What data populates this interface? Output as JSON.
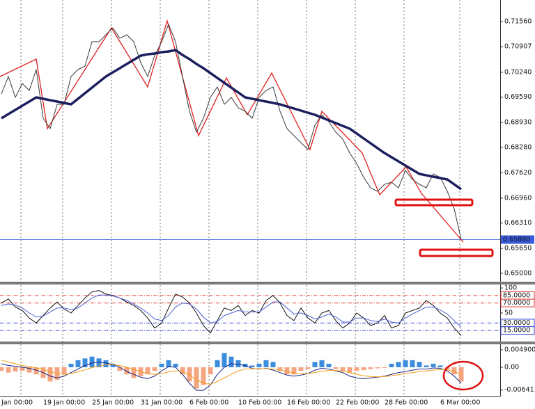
{
  "chart_data": [
    {
      "type": "line",
      "ylim": [
        0.64783,
        0.72122
      ],
      "yticks": [
        {
          "value": 0.7156,
          "label": "0.71560"
        },
        {
          "value": 0.70907,
          "label": "0.70907"
        },
        {
          "value": 0.7024,
          "label": "0.70240"
        },
        {
          "value": 0.6959,
          "label": "0.69590"
        },
        {
          "value": 0.6893,
          "label": "0.68930"
        },
        {
          "value": 0.6828,
          "label": "0.68280"
        },
        {
          "value": 0.6762,
          "label": "0.67620"
        },
        {
          "value": 0.6696,
          "label": "0.66960"
        },
        {
          "value": 0.6631,
          "label": "0.66310"
        },
        {
          "value": 0.6565,
          "label": "0.65650"
        },
        {
          "value": 0.65,
          "label": "0.65000"
        }
      ],
      "hline": {
        "value": 0.6588,
        "label": "0.65880",
        "color": "#3a5bd9"
      },
      "series": [
        {
          "color": "#3a3a3a",
          "values": [
            0.69675,
            0.70128,
            0.69585,
            0.69947,
            0.69766,
            0.7031,
            0.69041,
            0.6877,
            0.69404,
            0.69404,
            0.70128,
            0.7031,
            0.704,
            0.71035,
            0.71035,
            0.71216,
            0.71397,
            0.71125,
            0.71216,
            0.71035,
            0.70491,
            0.70128,
            0.70672,
            0.71035,
            0.71488,
            0.71035,
            0.70128,
            0.69223,
            0.68679,
            0.69041,
            0.69585,
            0.69857,
            0.69404,
            0.69585,
            0.69313,
            0.69223,
            0.69041,
            0.69585,
            0.69766,
            0.69857,
            0.69223,
            0.6877,
            0.68588,
            0.68407,
            0.68226,
            0.6886,
            0.69132,
            0.68951,
            0.68679,
            0.68498,
            0.68135,
            0.67864,
            0.67501,
            0.67229,
            0.67139,
            0.6732,
            0.67374,
            0.67229,
            0.67682,
            0.67447,
            0.6732,
            0.67229,
            0.67592,
            0.67501,
            0.67139,
            0.66686,
            0.6588
          ]
        },
        {
          "color": "#1c1f5e",
          "values": [
            0.69041,
            0.6915,
            0.69259,
            0.69367,
            0.69476,
            0.69585,
            0.69549,
            0.69512,
            0.69476,
            0.6944,
            0.69404,
            0.69549,
            0.69694,
            0.69839,
            0.69984,
            0.70128,
            0.70237,
            0.70346,
            0.70455,
            0.70563,
            0.70672,
            0.70708,
            0.70726,
            0.70763,
            0.70781,
            0.70817,
            0.7069,
            0.70582,
            0.70455,
            0.70346,
            0.70219,
            0.70092,
            0.69965,
            0.69839,
            0.69712,
            0.69585,
            0.69549,
            0.69512,
            0.69476,
            0.6944,
            0.69404,
            0.69349,
            0.69295,
            0.69241,
            0.69186,
            0.69132,
            0.69059,
            0.68987,
            0.68914,
            0.68842,
            0.6877,
            0.68643,
            0.68516,
            0.68389,
            0.68262,
            0.68135,
            0.68027,
            0.67918,
            0.67809,
            0.677,
            0.67592,
            0.67555,
            0.67519,
            0.67483,
            0.67447,
            0.6732,
            0.67193
          ]
        }
      ]
    },
    {
      "type": "line",
      "ylim": [
        -7,
        107
      ],
      "yticks": [
        100,
        50
      ],
      "levels": [
        {
          "value": 85,
          "label": "85.0000",
          "color": "#e03030"
        },
        {
          "value": 70,
          "label": "70.0000",
          "color": "#e03030"
        },
        {
          "value": 30,
          "label": "30.0000",
          "color": "#2a3fd0"
        },
        {
          "value": 15,
          "label": "15.0000",
          "color": "#2a3fd0"
        }
      ],
      "series": [
        {
          "color": "#111111",
          "values": [
            70,
            78,
            62,
            55,
            40,
            30,
            45,
            60,
            72,
            58,
            50,
            65,
            80,
            92,
            95,
            88,
            85,
            80,
            72,
            65,
            55,
            40,
            20,
            30,
            60,
            88,
            82,
            70,
            50,
            25,
            10,
            35,
            60,
            55,
            65,
            45,
            55,
            50,
            75,
            85,
            70,
            45,
            35,
            60,
            40,
            30,
            50,
            55,
            35,
            20,
            30,
            50,
            40,
            25,
            30,
            45,
            20,
            25,
            50,
            55,
            60,
            75,
            65,
            50,
            40,
            20,
            5
          ]
        },
        {
          "color": "#4b5fd6",
          "values": [
            65,
            68,
            66,
            60,
            50,
            42,
            44,
            52,
            60,
            60,
            57,
            60,
            70,
            80,
            86,
            86,
            84,
            80,
            75,
            68,
            60,
            50,
            38,
            35,
            45,
            62,
            70,
            68,
            58,
            42,
            30,
            33,
            45,
            50,
            55,
            52,
            52,
            52,
            62,
            72,
            72,
            60,
            48,
            50,
            45,
            38,
            42,
            48,
            42,
            32,
            32,
            40,
            40,
            35,
            33,
            38,
            32,
            30,
            40,
            48,
            55,
            62,
            62,
            56,
            48,
            35,
            22
          ]
        }
      ]
    },
    {
      "type": "combo",
      "ylim": [
        -0.00823,
        0.00647
      ],
      "yticks": [
        {
          "value": 0.0049007,
          "label": "0.0049007"
        },
        {
          "value": 0,
          "label": "0.00"
        },
        {
          "value": -0.006413,
          "label": "-0.006413"
        }
      ],
      "categories": [
        "Jan 00:00",
        null,
        null,
        null,
        null,
        null,
        "19 Jan 00:00",
        null,
        null,
        null,
        null,
        null,
        null,
        "25 Jan 00:00",
        null,
        null,
        null,
        null,
        null,
        null,
        "31 Jan 00:00",
        null,
        null,
        null,
        null,
        null,
        null,
        "6 Feb 00:00",
        null,
        null,
        null,
        null,
        null,
        null,
        "10 Feb 00:00",
        null,
        null,
        null,
        null,
        null,
        null,
        "16 Feb 00:00",
        null,
        null,
        null,
        null,
        null,
        null,
        "22 Feb 00:00",
        null,
        null,
        null,
        null,
        null,
        null,
        "28 Feb 00:00",
        null,
        null,
        null,
        null,
        null,
        null,
        null,
        "6 Mar 00:00",
        null,
        null,
        null
      ],
      "series": [
        {
          "type": "bar",
          "color": "#3c8dde",
          "negative_color": "#f4a582",
          "values": [
            -0.001,
            -0.0015,
            -0.0012,
            -0.001,
            -0.0015,
            -0.002,
            -0.003,
            -0.004,
            -0.0035,
            -0.002,
            0.001,
            0.002,
            0.0025,
            0.003,
            0.0025,
            0.002,
            0.001,
            -0.001,
            -0.002,
            -0.003,
            -0.0025,
            -0.002,
            -0.001,
            0.001,
            0.002,
            0.001,
            -0.002,
            -0.004,
            -0.006,
            -0.005,
            -0.002,
            0.002,
            0.004,
            0.003,
            0.002,
            0.001,
            0.0005,
            0.001,
            0.002,
            0.0015,
            -0.001,
            -0.002,
            -0.002,
            -0.001,
            -0.0005,
            0.0015,
            0.002,
            0.001,
            -0.0005,
            -0.001,
            -0.0015,
            -0.001,
            -0.0008,
            -0.0005,
            -0.0003,
            -0.0002,
            0.001,
            0.0015,
            0.002,
            0.002,
            0.0015,
            0.0005,
            0.001,
            0.0005,
            -0.0005,
            -0.002,
            -0.004
          ]
        },
        {
          "type": "line",
          "color": "#1a237e",
          "values": [
            0.001,
            0.0005,
            0.0003,
            0,
            -0.0003,
            -0.0008,
            -0.0015,
            -0.0025,
            -0.003,
            -0.0025,
            -0.0015,
            -0.0005,
            0.0005,
            0.0012,
            0.0015,
            0.0012,
            0.0008,
            0,
            -0.0012,
            -0.002,
            -0.0028,
            -0.0032,
            -0.0025,
            -0.001,
            0.0002,
            0,
            -0.002,
            -0.0045,
            -0.0065,
            -0.0065,
            -0.005,
            -0.002,
            0,
            0.001,
            0.0008,
            0.0005,
            -0.0003,
            -0.0005,
            -0.0003,
            -0.0008,
            -0.0015,
            -0.0022,
            -0.0025,
            -0.0022,
            -0.0018,
            -0.0008,
            -0.0003,
            -0.0005,
            -0.001,
            -0.0015,
            -0.0025,
            -0.003,
            -0.0032,
            -0.003,
            -0.0028,
            -0.0025,
            -0.002,
            -0.0015,
            -0.0012,
            -0.0008,
            -0.0005,
            -0.0005,
            -0.0002,
            -0.0003,
            -0.001,
            -0.0025,
            -0.0045
          ]
        },
        {
          "type": "line",
          "color": "#f39c12",
          "values": [
            0.002,
            0.0015,
            0.001,
            0.0005,
            0.0002,
            -0.0002,
            -0.0006,
            -0.0012,
            -0.0018,
            -0.002,
            -0.0018,
            -0.0013,
            -0.0007,
            -0.0001,
            0.0004,
            0.0007,
            0.0007,
            0.0005,
            0,
            -0.0006,
            -0.0012,
            -0.0018,
            -0.002,
            -0.0018,
            -0.0013,
            -0.001,
            -0.0012,
            -0.0022,
            -0.0035,
            -0.0045,
            -0.0048,
            -0.004,
            -0.003,
            -0.002,
            -0.001,
            -0.0005,
            -0.0004,
            -0.0004,
            -0.0004,
            -0.0005,
            -0.0008,
            -0.0012,
            -0.0016,
            -0.0018,
            -0.0018,
            -0.0015,
            -0.0011,
            -0.0009,
            -0.0009,
            -0.0011,
            -0.0015,
            -0.002,
            -0.0024,
            -0.0026,
            -0.0027,
            -0.0026,
            -0.0024,
            -0.0021,
            -0.0018,
            -0.0015,
            -0.0012,
            -0.001,
            -0.0008,
            -0.0006,
            -0.0007,
            -0.0012,
            -0.002
          ]
        }
      ]
    }
  ]
}
